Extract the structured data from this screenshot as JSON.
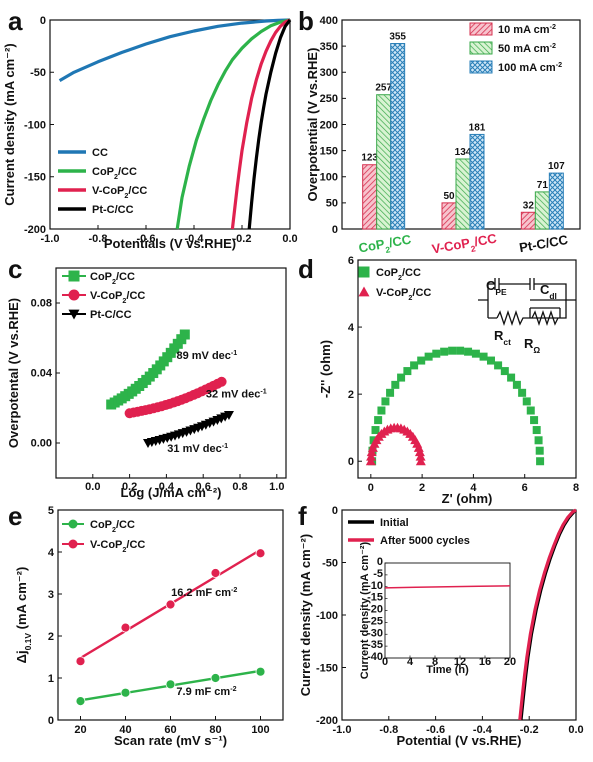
{
  "chart_data": [
    {
      "id": "a",
      "type": "line",
      "panel_label": "a",
      "xlabel": "Potentials (V vs.RHE)",
      "ylabel": "Current density (mA cm⁻²)",
      "xlim": [
        -1.0,
        0.0
      ],
      "ylim": [
        -200,
        0
      ],
      "xticks": [
        -1.0,
        -0.8,
        -0.6,
        -0.4,
        -0.2,
        0.0
      ],
      "xtick_labels": [
        "-1.0",
        "-0.8",
        "-0.6",
        "-0.4",
        "-0.2",
        "0.0"
      ],
      "yticks": [
        -200,
        -150,
        -100,
        -50,
        0
      ],
      "ytick_labels": [
        "-200",
        "-150",
        "-100",
        "-50",
        "0"
      ],
      "legend_position": "bottom-left",
      "series": [
        {
          "name": "CC",
          "label_main": "CC",
          "label_sub": "",
          "label_tail": "",
          "color": "#1f77b4",
          "x": [
            -0.96,
            -0.9,
            -0.8,
            -0.7,
            -0.6,
            -0.5,
            -0.4,
            -0.3,
            -0.2,
            -0.1,
            -0.05,
            0.0
          ],
          "y": [
            -58,
            -50,
            -40,
            -31,
            -23,
            -16,
            -10.5,
            -6,
            -3,
            -1,
            -0.4,
            0
          ]
        },
        {
          "name": "CoP2/CC",
          "label_main": "CoP",
          "label_sub": "2",
          "label_tail": "/CC",
          "color": "#2db34a",
          "x": [
            -0.47,
            -0.45,
            -0.42,
            -0.39,
            -0.36,
            -0.33,
            -0.3,
            -0.27,
            -0.24,
            -0.2,
            -0.16,
            -0.12,
            -0.08,
            -0.04,
            0.0
          ],
          "y": [
            -200,
            -170,
            -140,
            -115,
            -95,
            -77,
            -62,
            -49,
            -38,
            -27,
            -18,
            -11,
            -5.5,
            -2,
            0
          ]
        },
        {
          "name": "V-CoP2/CC",
          "label_main": "V-CoP",
          "label_sub": "2",
          "label_tail": "/CC",
          "color": "#e0214f",
          "x": [
            -0.24,
            -0.23,
            -0.22,
            -0.21,
            -0.2,
            -0.18,
            -0.16,
            -0.14,
            -0.12,
            -0.1,
            -0.08,
            -0.06,
            -0.04,
            -0.02,
            0.0
          ],
          "y": [
            -200,
            -180,
            -160,
            -142,
            -125,
            -98,
            -75,
            -57,
            -42,
            -30,
            -20,
            -12,
            -6,
            -2,
            0
          ]
        },
        {
          "name": "Pt-C/CC",
          "label_main": "Pt-C/CC",
          "label_sub": "",
          "label_tail": "",
          "color": "#000000",
          "x": [
            -0.17,
            -0.16,
            -0.15,
            -0.14,
            -0.13,
            -0.12,
            -0.11,
            -0.1,
            -0.08,
            -0.06,
            -0.04,
            -0.02,
            0.0
          ],
          "y": [
            -200,
            -175,
            -152,
            -132,
            -114,
            -98,
            -84,
            -71,
            -50,
            -32,
            -17,
            -6,
            0
          ]
        }
      ]
    },
    {
      "id": "b",
      "type": "bar",
      "panel_label": "b",
      "ylabel": "Overpotential (V vs.RHE)",
      "ylim": [
        0,
        400
      ],
      "yticks": [
        0,
        50,
        100,
        150,
        200,
        250,
        300,
        350,
        400
      ],
      "ytick_labels": [
        "0",
        "50",
        "100",
        "150",
        "200",
        "250",
        "300",
        "350",
        "400"
      ],
      "categories": [
        {
          "main": "CoP",
          "sub": "2",
          "tail": "/CC",
          "color": "#2db34a"
        },
        {
          "main": "V-CoP",
          "sub": "2",
          "tail": "/CC",
          "color": "#e0214f"
        },
        {
          "main": "Pt-C/CC",
          "sub": "",
          "tail": "",
          "color": "#111111"
        }
      ],
      "legend_position": "top-right",
      "series": [
        {
          "name": "10 mA cm-2",
          "label_main": "10 mA cm",
          "label_sup": "-2",
          "fill": "#f3a6b4",
          "stroke": "#d6304f",
          "pattern": "hatch-pink",
          "values": [
            123,
            50,
            32
          ],
          "value_labels": [
            "123",
            "50",
            "32"
          ]
        },
        {
          "name": "50 mA cm-2",
          "label_main": "50 mA cm",
          "label_sup": "-2",
          "fill": "#c9efc3",
          "stroke": "#39a84a",
          "pattern": "hatch-green",
          "values": [
            257,
            134,
            71
          ],
          "value_labels": [
            "257",
            "134",
            "71"
          ]
        },
        {
          "name": "100 mA cm-2",
          "label_main": "100 mA cm",
          "label_sup": "-2",
          "fill": "#bfe0f5",
          "stroke": "#2a7fb8",
          "pattern": "cross-blue",
          "values": [
            355,
            181,
            107
          ],
          "value_labels": [
            "355",
            "181",
            "107"
          ]
        }
      ]
    },
    {
      "id": "c",
      "type": "scatter",
      "panel_label": "c",
      "xlabel": "Log (J/mA cm⁻²)",
      "ylabel": "Overpotental (V vs.RHE)",
      "xlim": [
        -0.2,
        1.05
      ],
      "ylim": [
        -0.02,
        0.1
      ],
      "xticks": [
        0.0,
        0.2,
        0.4,
        0.6,
        0.8,
        1.0
      ],
      "xtick_labels": [
        "0.0",
        "0.2",
        "0.4",
        "0.6",
        "0.8",
        "1.0"
      ],
      "yticks": [
        0.0,
        0.04,
        0.08
      ],
      "ytick_labels": [
        "0.00",
        "0.04",
        "0.08"
      ],
      "legend_position": "top-left",
      "series": [
        {
          "name": "CoP2/CC",
          "label_main": "CoP",
          "label_sub": "2",
          "label_tail": "/CC",
          "color": "#2db34a",
          "marker": "square",
          "x0": 0.1,
          "x1": 0.5,
          "y0": 0.022,
          "y1": 0.058,
          "n": 22,
          "curve": 0.004
        },
        {
          "name": "V-CoP2/CC",
          "label_main": "V-CoP",
          "label_sub": "2",
          "label_tail": "/CC",
          "color": "#e0214f",
          "marker": "circle",
          "x0": 0.2,
          "x1": 0.7,
          "y0": 0.017,
          "y1": 0.033,
          "n": 24,
          "curve": 0.002
        },
        {
          "name": "Pt-C/CC",
          "label_main": "Pt-C/CC",
          "label_sub": "",
          "label_tail": "",
          "color": "#000000",
          "marker": "triangle-down",
          "x0": 0.3,
          "x1": 0.74,
          "y0": 0.0,
          "y1": 0.015,
          "n": 22,
          "curve": 0.001
        }
      ],
      "annotations": [
        {
          "text": "89 mV dec",
          "sup": "-1",
          "x": 0.62,
          "y": 0.048
        },
        {
          "text": "32 mV dec",
          "sup": "-1",
          "x": 0.78,
          "y": 0.026
        },
        {
          "text": "31 mV dec",
          "sup": "-1",
          "x": 0.57,
          "y": -0.005
        }
      ]
    },
    {
      "id": "d",
      "type": "scatter",
      "panel_label": "d",
      "xlabel": "Z' (ohm)",
      "ylabel": "-Z'' (ohm)",
      "xlim": [
        -0.5,
        8
      ],
      "ylim": [
        -0.5,
        6
      ],
      "xticks": [
        0,
        2,
        4,
        6,
        8
      ],
      "xtick_labels": [
        "0",
        "2",
        "4",
        "6",
        "8"
      ],
      "yticks": [
        0,
        2,
        4,
        6
      ],
      "ytick_labels": [
        "0",
        "2",
        "4",
        "6"
      ],
      "legend_position": "top-left",
      "series": [
        {
          "name": "CoP2/CC",
          "label_main": "CoP",
          "label_sub": "2",
          "label_tail": "/CC",
          "color": "#2db34a",
          "marker": "square",
          "start": 0.05,
          "end": 6.6,
          "peak": 3.3,
          "n": 34
        },
        {
          "name": "V-CoP2/CC",
          "label_main": "V-CoP",
          "label_sub": "2",
          "label_tail": "/CC",
          "color": "#e0214f",
          "marker": "triangle-up",
          "start": 0.0,
          "end": 1.95,
          "peak": 1.0,
          "n": 24
        }
      ],
      "circuit": {
        "c_pe_main": "C",
        "c_pe_sub": "PE",
        "c_dl_main": "C",
        "c_dl_sub": "dl",
        "r_ct_main": "R",
        "r_ct_sub": "ct",
        "r_omega_main": "R",
        "r_omega_sub": "Ω"
      }
    },
    {
      "id": "e",
      "type": "scatter",
      "panel_label": "e",
      "xlabel": "Scan rate (mV s⁻¹)",
      "ylabel_main": "Δj",
      "ylabel_sub": "0.1V",
      "ylabel_tail": " (mA cm⁻²)",
      "xlim": [
        10,
        110
      ],
      "ylim": [
        0,
        5
      ],
      "xticks": [
        20,
        40,
        60,
        80,
        100
      ],
      "xtick_labels": [
        "20",
        "40",
        "60",
        "80",
        "100"
      ],
      "yticks": [
        0,
        1,
        2,
        3,
        4,
        5
      ],
      "ytick_labels": [
        "0",
        "1",
        "2",
        "3",
        "4",
        "5"
      ],
      "legend_position": "top-left",
      "series": [
        {
          "name": "CoP2/CC",
          "label_main": "CoP",
          "label_sub": "2",
          "label_tail": "/CC",
          "color": "#2db34a",
          "x": [
            20,
            40,
            60,
            80,
            100
          ],
          "y": [
            0.45,
            0.65,
            0.85,
            1.0,
            1.15
          ]
        },
        {
          "name": "V-CoP2/CC",
          "label_main": "V-CoP",
          "label_sub": "2",
          "label_tail": "/CC",
          "color": "#e0214f",
          "x": [
            20,
            40,
            60,
            80,
            100
          ],
          "y": [
            1.4,
            2.2,
            2.75,
            3.5,
            3.97
          ]
        }
      ],
      "annotations": [
        {
          "text": "16.2 mF cm",
          "sup": "-2",
          "x": 75,
          "y": 2.95
        },
        {
          "text": "7.9 mF cm",
          "sup": "-2",
          "x": 76,
          "y": 0.6
        }
      ]
    },
    {
      "id": "f",
      "type": "line",
      "panel_label": "f",
      "xlabel": "Potential (V vs.RHE)",
      "ylabel": "Current density (mA cm⁻²)",
      "xlim": [
        -1.0,
        0.0
      ],
      "ylim": [
        -200,
        0
      ],
      "xticks": [
        -1.0,
        -0.8,
        -0.6,
        -0.4,
        -0.2,
        0.0
      ],
      "xtick_labels": [
        "-1.0",
        "-0.8",
        "-0.6",
        "-0.4",
        "-0.2",
        "0.0"
      ],
      "yticks": [
        -200,
        -150,
        -100,
        -50,
        0
      ],
      "ytick_labels": [
        "-200",
        "-150",
        "-100",
        "-50",
        "0"
      ],
      "legend_position": "top-left",
      "series": [
        {
          "name": "Initial",
          "color": "#000000",
          "x": [
            -0.235,
            -0.225,
            -0.215,
            -0.205,
            -0.19,
            -0.17,
            -0.15,
            -0.13,
            -0.11,
            -0.09,
            -0.07,
            -0.05,
            -0.03,
            -0.01,
            0.0
          ],
          "y": [
            -200,
            -178,
            -158,
            -140,
            -118,
            -95,
            -76,
            -60,
            -46,
            -34,
            -23,
            -14,
            -7,
            -2,
            0
          ]
        },
        {
          "name": "After 5000 cycles",
          "color": "#e0214f",
          "x": [
            -0.24,
            -0.23,
            -0.22,
            -0.21,
            -0.195,
            -0.175,
            -0.155,
            -0.135,
            -0.115,
            -0.095,
            -0.075,
            -0.055,
            -0.035,
            -0.015,
            0.0
          ],
          "y": [
            -200,
            -178,
            -158,
            -140,
            -118,
            -95,
            -76,
            -60,
            -46,
            -34,
            -23,
            -14,
            -7,
            -2,
            0
          ]
        }
      ],
      "inset": {
        "xlabel": "Time (h)",
        "ylabel": "Current density (mA cm⁻²)",
        "xlim": [
          0,
          20
        ],
        "ylim": [
          -40,
          0
        ],
        "xticks": [
          0,
          4,
          8,
          12,
          16,
          20
        ],
        "xtick_labels": [
          "0",
          "4",
          "8",
          "12",
          "16",
          "20"
        ],
        "yticks": [
          -40,
          -35,
          -30,
          -25,
          -20,
          -15,
          -10,
          -5,
          0
        ],
        "ytick_labels": [
          "-40",
          "-35",
          "-30",
          "-25",
          "-20",
          "-15",
          "-10",
          "-5",
          "0"
        ],
        "series": [
          {
            "name": "stability",
            "color": "#e0214f",
            "x": [
              0,
              5,
              10,
              15,
              20
            ],
            "y": [
              -10.5,
              -10.2,
              -10.0,
              -9.8,
              -9.6
            ]
          }
        ]
      }
    }
  ]
}
